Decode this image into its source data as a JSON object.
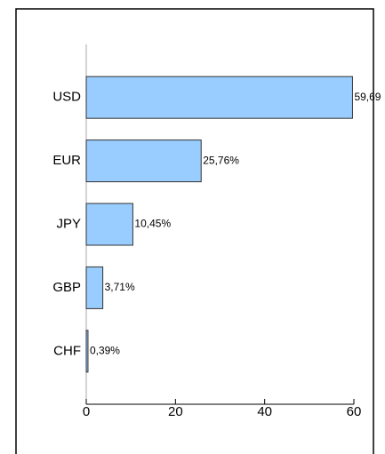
{
  "chart_data": {
    "type": "bar",
    "orientation": "horizontal",
    "categories": [
      "USD",
      "EUR",
      "JPY",
      "GBP",
      "CHF"
    ],
    "values": [
      59.69,
      25.76,
      10.45,
      3.71,
      0.39
    ],
    "value_labels": [
      "59,69",
      "25,76%",
      "10,45%",
      "3,71%",
      "0,39%"
    ],
    "color": "#99ccff",
    "xlim": [
      0,
      60
    ],
    "xticks": [
      0,
      20,
      40,
      60
    ],
    "grid": false
  }
}
